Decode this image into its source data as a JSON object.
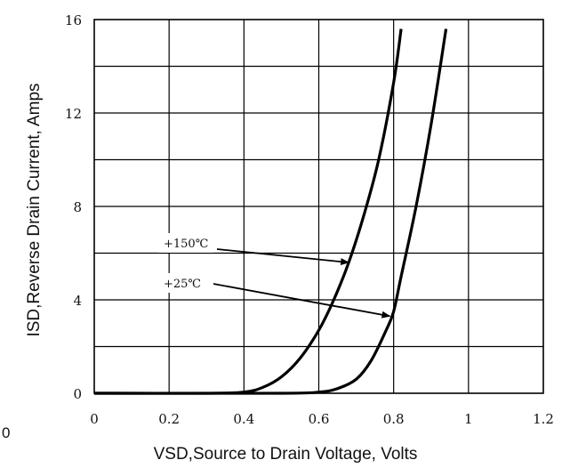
{
  "chart_data": {
    "type": "line",
    "title": "",
    "xlabel": "VSD,Source to Drain Voltage, Volts",
    "ylabel": "ISD,Reverse Drain Current, Amps",
    "xlim": [
      0,
      1.2
    ],
    "ylim": [
      0,
      16
    ],
    "x_ticks": [
      "0",
      "0.2",
      "0.4",
      "0.6",
      "0.8",
      "1",
      "1.2"
    ],
    "y_ticks": [
      "0",
      "4",
      "8",
      "12",
      "16"
    ],
    "x_grid_step": 0.2,
    "y_grid_step": 2,
    "grid": true,
    "series": [
      {
        "name": "+150℃",
        "color": "#000000",
        "x": [
          0.0,
          0.3,
          0.4,
          0.45,
          0.5,
          0.55,
          0.6,
          0.64,
          0.68,
          0.72,
          0.76,
          0.8,
          0.82
        ],
        "y": [
          0.0,
          0.0,
          0.05,
          0.25,
          0.7,
          1.5,
          2.7,
          4.0,
          5.6,
          7.6,
          10.0,
          13.3,
          15.6
        ]
      },
      {
        "name": "+25℃",
        "color": "#000000",
        "x": [
          0.0,
          0.5,
          0.6,
          0.65,
          0.7,
          0.74,
          0.78,
          0.8,
          0.82,
          0.86,
          0.9,
          0.94
        ],
        "y": [
          0.0,
          0.0,
          0.05,
          0.2,
          0.6,
          1.4,
          2.7,
          3.5,
          5.0,
          8.0,
          11.5,
          15.6
        ]
      }
    ],
    "annotations": [
      {
        "text": "+150℃",
        "series": "+150℃",
        "arrow_to": [
          0.68,
          5.6
        ]
      },
      {
        "text": "+25℃",
        "series": "+25℃",
        "arrow_to": [
          0.79,
          3.3
        ]
      }
    ],
    "stray_label": "0"
  }
}
